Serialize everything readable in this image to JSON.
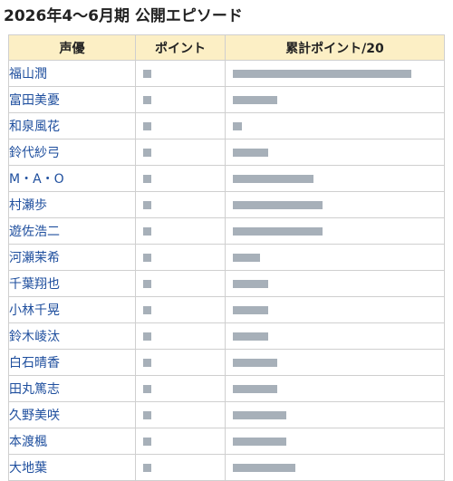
{
  "page": {
    "title": "2026年4〜6月期 公開エピソード"
  },
  "colors": {
    "header_background": "#fcefc5",
    "name_text": "#1f4f9e",
    "bar": "#a7b0b9",
    "border": "#cfcfcf"
  },
  "chart_data": {
    "type": "table",
    "columns": [
      "声優",
      "ポイント",
      "累計ポイント/20"
    ],
    "rows": [
      {
        "name": "福山潤",
        "points": 1,
        "cumulative": 20
      },
      {
        "name": "富田美憂",
        "points": 1,
        "cumulative": 5
      },
      {
        "name": "和泉風花",
        "points": 1,
        "cumulative": 1
      },
      {
        "name": "鈴代紗弓",
        "points": 1,
        "cumulative": 4
      },
      {
        "name": "M・A・O",
        "points": 1,
        "cumulative": 9
      },
      {
        "name": "村瀬歩",
        "points": 1,
        "cumulative": 10
      },
      {
        "name": "遊佐浩二",
        "points": 1,
        "cumulative": 10
      },
      {
        "name": "河瀬茉希",
        "points": 1,
        "cumulative": 3
      },
      {
        "name": "千葉翔也",
        "points": 1,
        "cumulative": 4
      },
      {
        "name": "小林千晃",
        "points": 1,
        "cumulative": 4
      },
      {
        "name": "鈴木崚汰",
        "points": 1,
        "cumulative": 4
      },
      {
        "name": "白石晴香",
        "points": 1,
        "cumulative": 5
      },
      {
        "name": "田丸篤志",
        "points": 1,
        "cumulative": 5
      },
      {
        "name": "久野美咲",
        "points": 1,
        "cumulative": 6
      },
      {
        "name": "本渡楓",
        "points": 1,
        "cumulative": 6
      },
      {
        "name": "大地葉",
        "points": 1,
        "cumulative": 7
      }
    ],
    "points_max": 1,
    "cumulative_max": 20
  }
}
